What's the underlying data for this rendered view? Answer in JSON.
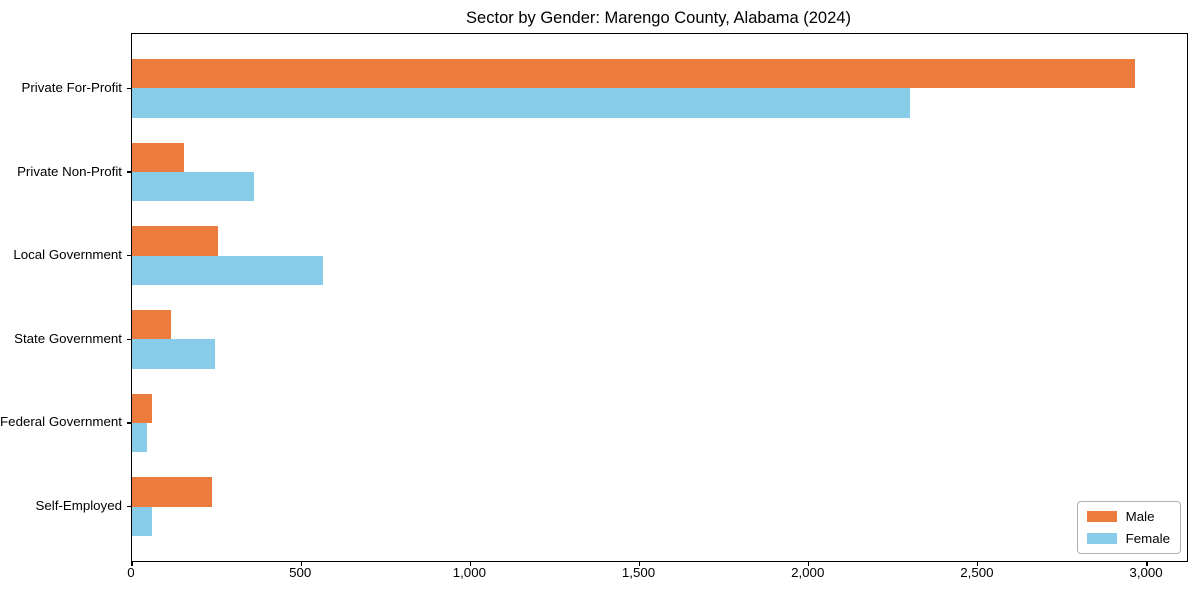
{
  "title": "Sector by Gender: Marengo County, Alabama (2024)",
  "colors": {
    "male": "#ec7c3d",
    "female": "#87cde9",
    "spine": "#000000",
    "text": "#000000",
    "legend_border": "#b0b0b0",
    "background": "#ffffff"
  },
  "chart_data": {
    "type": "bar",
    "orientation": "horizontal",
    "title": "Sector by Gender: Marengo County, Alabama (2024)",
    "categories": [
      "Private For-Profit",
      "Private Non-Profit",
      "Local Government",
      "State Government",
      "Federal Government",
      "Self-Employed"
    ],
    "series": [
      {
        "name": "Male",
        "color": "#ec7c3d",
        "values": [
          2965,
          155,
          255,
          115,
          60,
          235
        ]
      },
      {
        "name": "Female",
        "color": "#87cde9",
        "values": [
          2300,
          360,
          565,
          245,
          45,
          60
        ]
      }
    ],
    "xlabel": "",
    "ylabel": "",
    "xlim": [
      0,
      3118
    ],
    "x_ticks": [
      0,
      500,
      1000,
      1500,
      2000,
      2500,
      3000
    ],
    "x_tick_labels": [
      "0",
      "500",
      "1,000",
      "1,500",
      "2,000",
      "2,500",
      "3,000"
    ],
    "grid": false,
    "legend_position": "lower right"
  }
}
